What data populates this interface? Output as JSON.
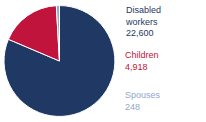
{
  "chart_data": {
    "type": "pie",
    "categories": [
      "Disabled workers",
      "Children",
      "Spouses"
    ],
    "values": [
      22600,
      4918,
      248
    ],
    "value_labels": [
      "22,600",
      "4,918",
      "248"
    ],
    "colors": [
      "#1f3864",
      "#c0143c",
      "#8fa8c8"
    ]
  }
}
